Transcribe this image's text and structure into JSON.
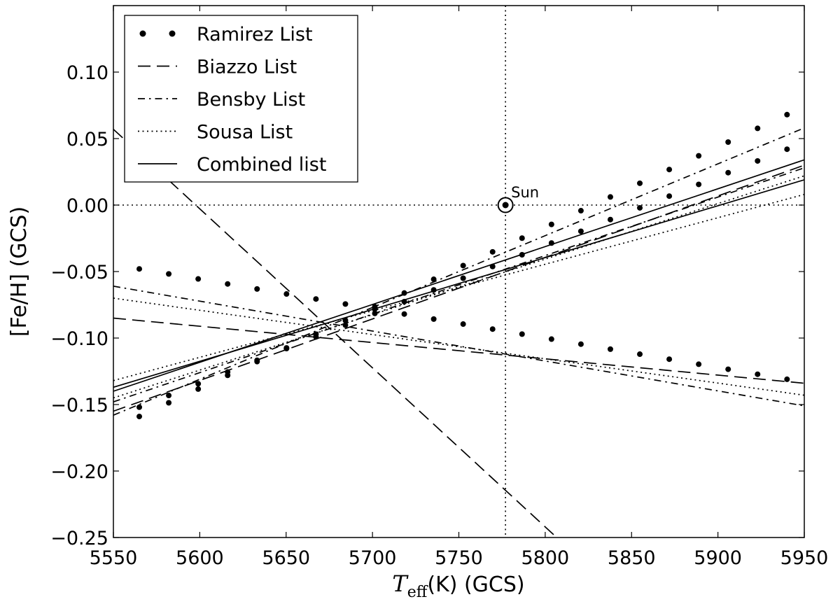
{
  "chart_data": {
    "type": "line",
    "xlabel_symbol": "T",
    "xlabel_subscript": "eff",
    "xlabel_rest": "(K) (GCS)",
    "ylabel": "[Fe/H] (GCS)",
    "xlim": [
      5550,
      5950
    ],
    "ylim": [
      -0.25,
      0.15
    ],
    "xticks": [
      5550,
      5600,
      5650,
      5700,
      5750,
      5800,
      5850,
      5900,
      5950
    ],
    "yticks": [
      -0.25,
      -0.2,
      -0.15,
      -0.1,
      -0.05,
      0.0,
      0.05,
      0.1
    ],
    "ytick_labels": [
      "−0.25",
      "−0.20",
      "−0.15",
      "−0.10",
      "−0.05",
      "0.00",
      "0.05",
      "0.10"
    ],
    "grid": false,
    "legend_position": "top-left",
    "reference_lines": {
      "x": 5777,
      "y": 0.0,
      "style": "dotted"
    },
    "annotation": {
      "label": "Sun",
      "x": 5777,
      "y": 0.0
    },
    "series": [
      {
        "name": "Ramirez List",
        "style": "dots",
        "lines": [
          {
            "x": [
              5565,
              5940
            ],
            "y": [
              -0.152,
              0.042
            ]
          },
          {
            "x": [
              5565,
              5940
            ],
            "y": [
              -0.048,
              -0.131
            ]
          },
          {
            "x": [
              5565,
              5940
            ],
            "y": [
              -0.159,
              0.068
            ]
          }
        ],
        "points_per_line": 23
      },
      {
        "name": "Biazzo List",
        "style": "dashed",
        "lines": [
          {
            "x": [
              5550,
              5950
            ],
            "y": [
              -0.155,
              0.03
            ]
          },
          {
            "x": [
              5550,
              5950
            ],
            "y": [
              -0.085,
              -0.134
            ]
          },
          {
            "x": [
              5550,
              5805
            ],
            "y": [
              0.057,
              -0.248
            ]
          }
        ]
      },
      {
        "name": "Bensby List",
        "style": "dashdot",
        "lines": [
          {
            "x": [
              5550,
              5950
            ],
            "y": [
              -0.158,
              0.058
            ]
          },
          {
            "x": [
              5550,
              5950
            ],
            "y": [
              -0.061,
              -0.151
            ]
          },
          {
            "x": [
              5550,
              5950
            ],
            "y": [
              -0.148,
              0.028
            ]
          }
        ]
      },
      {
        "name": "Sousa List",
        "style": "dotted",
        "lines": [
          {
            "x": [
              5550,
              5950
            ],
            "y": [
              -0.132,
              0.008
            ]
          },
          {
            "x": [
              5550,
              5950
            ],
            "y": [
              -0.07,
              -0.143
            ]
          },
          {
            "x": [
              5550,
              5950
            ],
            "y": [
              -0.145,
              0.022
            ]
          }
        ]
      },
      {
        "name": "Combined list",
        "style": "solid",
        "lines": [
          {
            "x": [
              5550,
              5950
            ],
            "y": [
              -0.14,
              0.034
            ]
          },
          {
            "x": [
              5550,
              5950
            ],
            "y": [
              -0.137,
              0.019
            ]
          }
        ]
      }
    ]
  }
}
